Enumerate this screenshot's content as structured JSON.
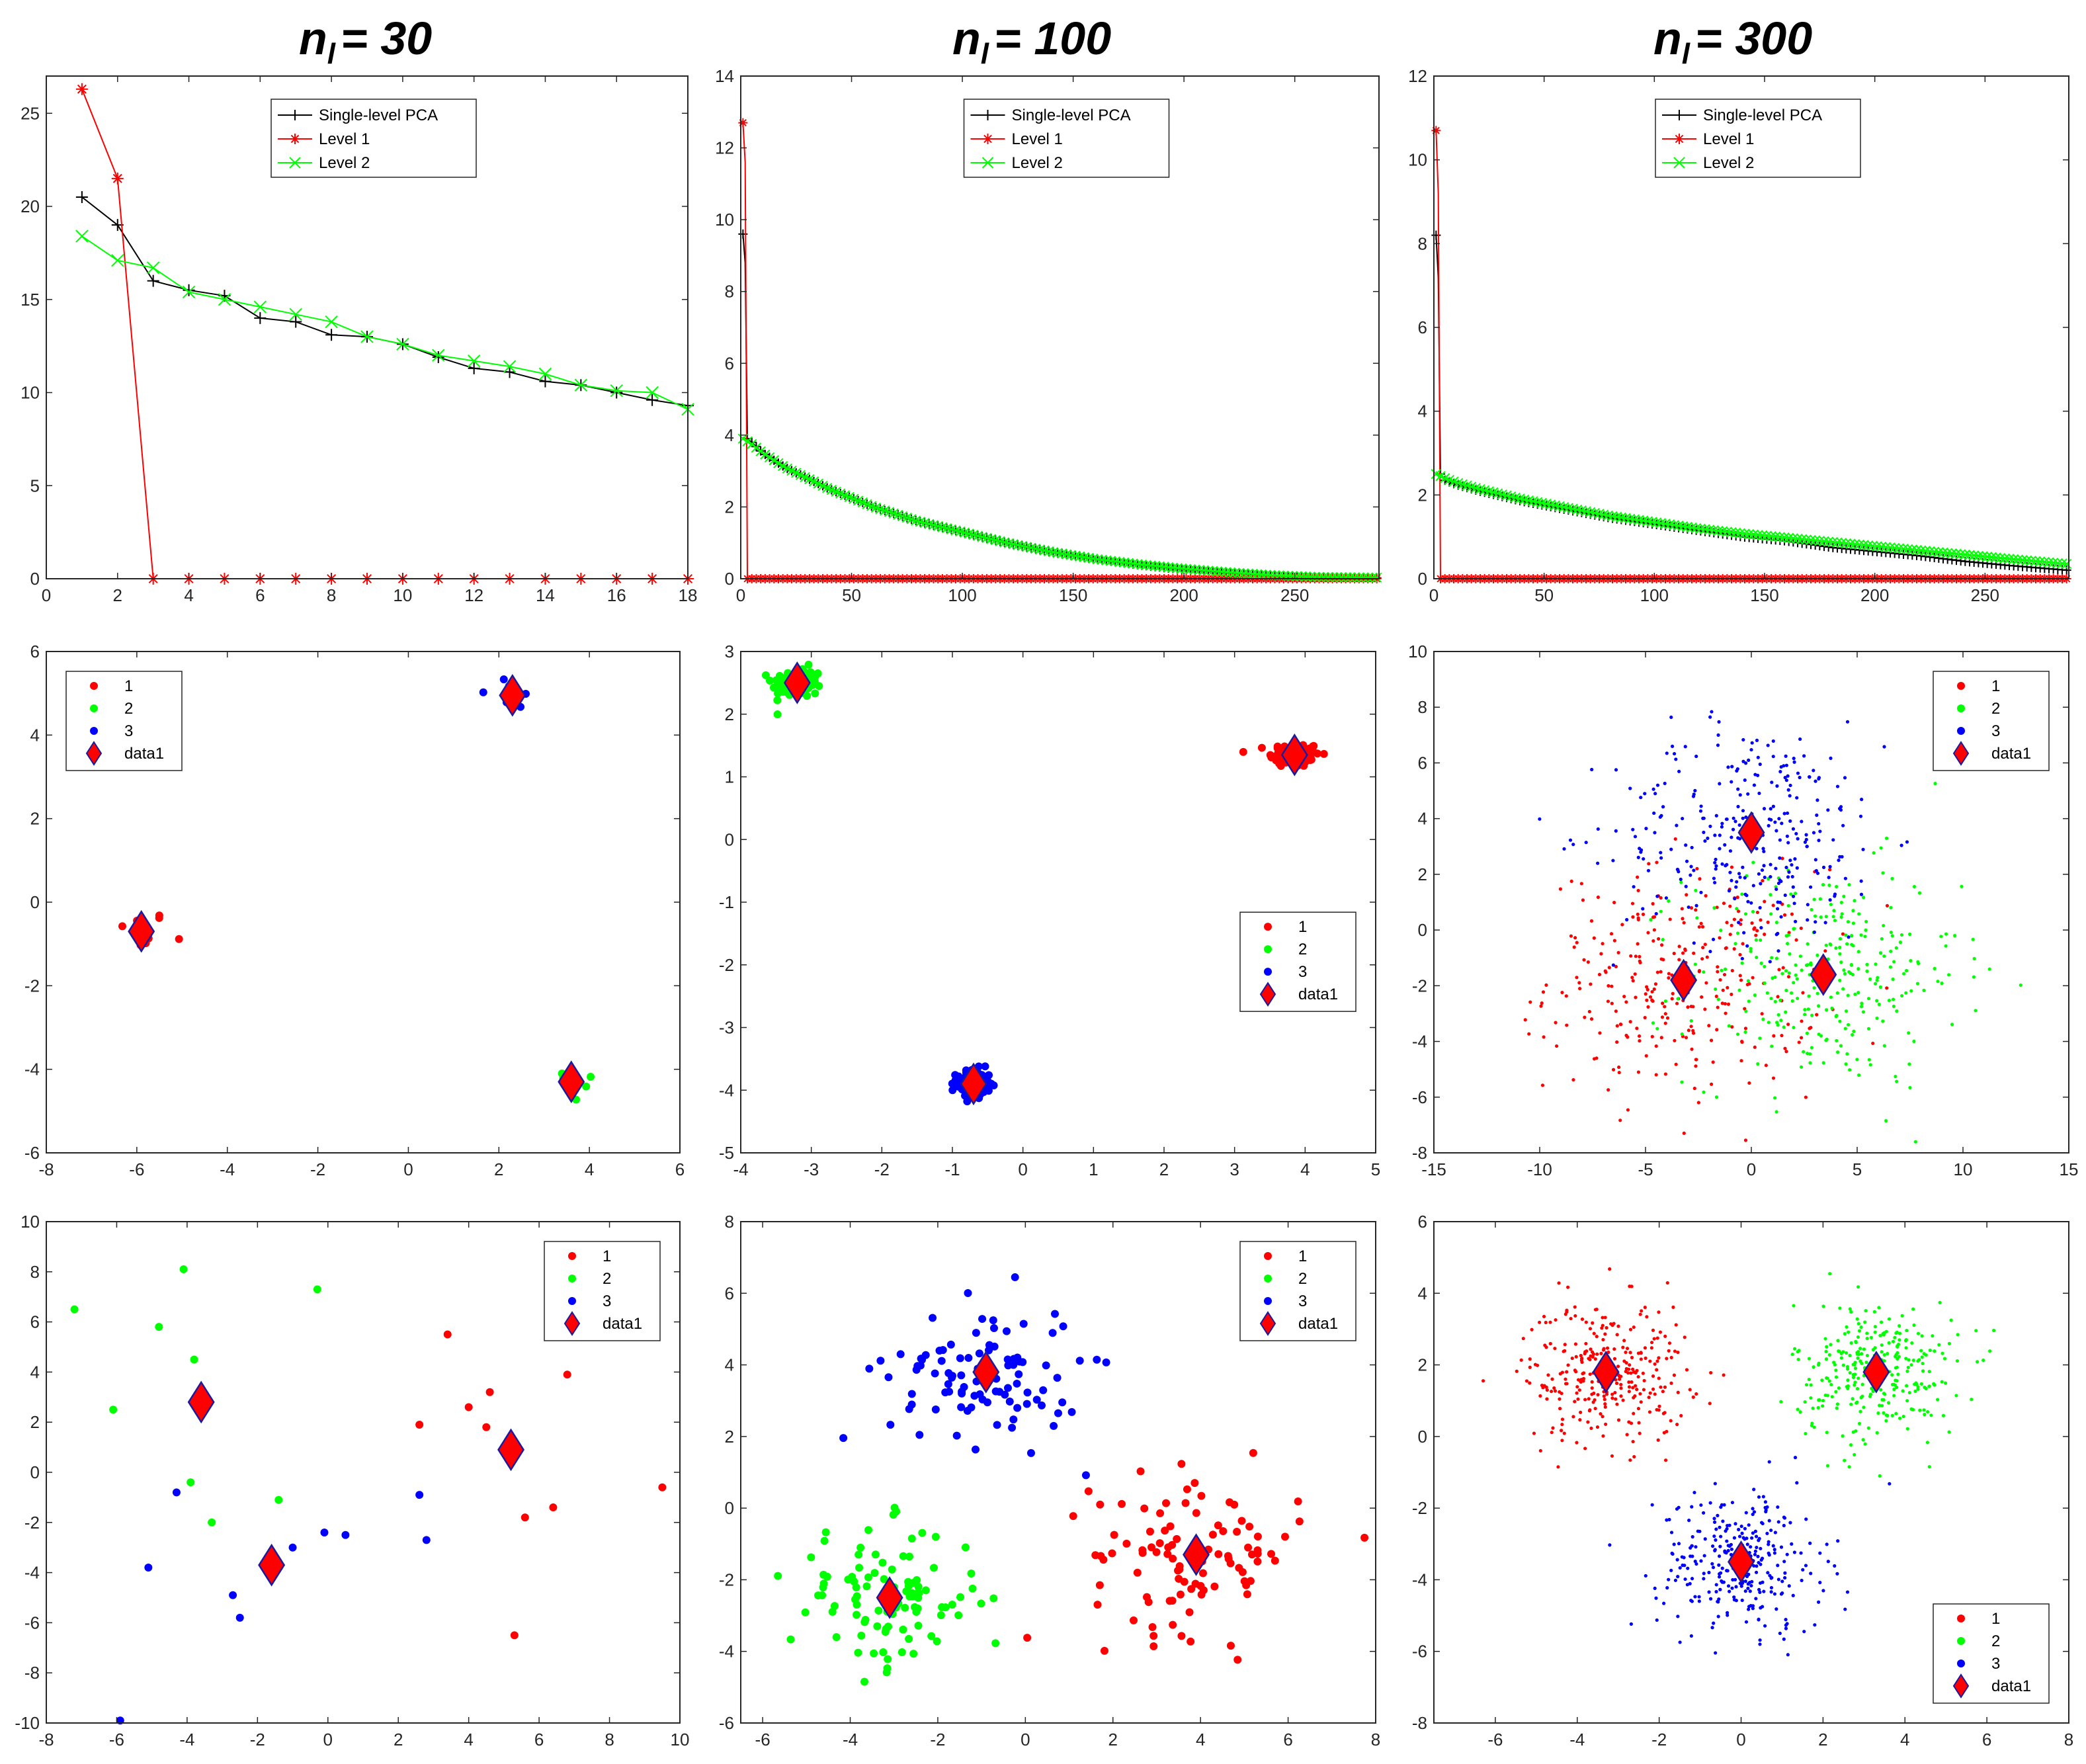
{
  "columns": [
    {
      "n": "n",
      "sub": "l",
      "eq": "= 30"
    },
    {
      "n": "n",
      "sub": "l",
      "eq": "= 100"
    },
    {
      "n": "n",
      "sub": "l",
      "eq": "= 300"
    }
  ],
  "colors": {
    "single": "#000000",
    "level1": "#ff0000",
    "level2": "#00ff00",
    "c1": "#ff0000",
    "c2": "#00ff00",
    "c3": "#0000ff",
    "axis": "#262626"
  },
  "chart_data": [
    {
      "id": "p11",
      "type": "line",
      "xlim": [
        0,
        18
      ],
      "ylim": [
        0,
        27
      ],
      "xticks": [
        0,
        2,
        4,
        6,
        8,
        10,
        12,
        14,
        16,
        18
      ],
      "yticks": [
        0,
        5,
        10,
        15,
        20,
        25
      ],
      "legend": {
        "position": "top-center",
        "entries": [
          "Single-level PCA",
          "Level 1",
          "Level 2"
        ]
      },
      "series": [
        {
          "name": "Single-level PCA",
          "marker": "+",
          "x": [
            1,
            2,
            3,
            4,
            5,
            6,
            7,
            8,
            9,
            10,
            11,
            12,
            13,
            14,
            15,
            16,
            17,
            18
          ],
          "y": [
            20.5,
            19,
            16,
            15.5,
            15.2,
            14,
            13.8,
            13.1,
            13,
            12.6,
            11.9,
            11.3,
            11.1,
            10.6,
            10.4,
            10,
            9.6,
            9.3
          ]
        },
        {
          "name": "Level 1",
          "marker": "*",
          "x": [
            1,
            2,
            3,
            4,
            5,
            6,
            7,
            8,
            9,
            10,
            11,
            12,
            13,
            14,
            15,
            16,
            17,
            18
          ],
          "y": [
            26.3,
            21.5,
            0,
            0,
            0,
            0,
            0,
            0,
            0,
            0,
            0,
            0,
            0,
            0,
            0,
            0,
            0,
            0
          ]
        },
        {
          "name": "Level 2",
          "marker": "x",
          "x": [
            1,
            2,
            3,
            4,
            5,
            6,
            7,
            8,
            9,
            10,
            11,
            12,
            13,
            14,
            15,
            16,
            17,
            18
          ],
          "y": [
            18.4,
            17.1,
            16.7,
            15.4,
            15,
            14.6,
            14.2,
            13.8,
            13,
            12.6,
            12,
            11.7,
            11.4,
            11,
            10.4,
            10.1,
            10,
            9.1
          ]
        }
      ]
    },
    {
      "id": "p12",
      "type": "line",
      "xlim": [
        0,
        288
      ],
      "ylim": [
        0,
        14
      ],
      "xticks": [
        0,
        50,
        100,
        150,
        200,
        250
      ],
      "yticks": [
        0,
        2,
        4,
        6,
        8,
        10,
        12,
        14
      ],
      "legend": {
        "position": "top-center",
        "entries": [
          "Single-level PCA",
          "Level 1",
          "Level 2"
        ]
      },
      "series": [
        {
          "name": "Single-level PCA",
          "marker": "+",
          "x": [
            1,
            2,
            3,
            5,
            10,
            20,
            40,
            60,
            80,
            100,
            120,
            140,
            160,
            180,
            200,
            220,
            240,
            260,
            288
          ],
          "y": [
            9.6,
            8.8,
            3.9,
            3.8,
            3.5,
            3.1,
            2.5,
            2.0,
            1.6,
            1.3,
            1.0,
            0.75,
            0.55,
            0.38,
            0.25,
            0.15,
            0.08,
            0.04,
            0.02
          ]
        },
        {
          "name": "Level 1",
          "marker": "*",
          "x": [
            1,
            2,
            3,
            288
          ],
          "y": [
            12.7,
            11.6,
            0,
            0
          ]
        },
        {
          "name": "Level 2",
          "marker": "x",
          "x": [
            1,
            5,
            10,
            20,
            40,
            60,
            80,
            100,
            120,
            140,
            160,
            180,
            200,
            220,
            240,
            260,
            288
          ],
          "y": [
            3.9,
            3.75,
            3.5,
            3.1,
            2.5,
            2.0,
            1.6,
            1.3,
            1.0,
            0.75,
            0.55,
            0.4,
            0.28,
            0.18,
            0.1,
            0.05,
            0.03
          ]
        }
      ]
    },
    {
      "id": "p13",
      "type": "line",
      "xlim": [
        0,
        288
      ],
      "ylim": [
        0,
        12
      ],
      "xticks": [
        0,
        50,
        100,
        150,
        200,
        250
      ],
      "yticks": [
        0,
        2,
        4,
        6,
        8,
        10,
        12
      ],
      "legend": {
        "position": "top-center",
        "entries": [
          "Single-level PCA",
          "Level 1",
          "Level 2"
        ]
      },
      "series": [
        {
          "name": "Single-level PCA",
          "marker": "+",
          "x": [
            1,
            2,
            3,
            5,
            10,
            20,
            40,
            60,
            80,
            100,
            120,
            140,
            160,
            180,
            200,
            220,
            240,
            260,
            288
          ],
          "y": [
            8.2,
            7.2,
            2.5,
            2.35,
            2.25,
            2.1,
            1.85,
            1.65,
            1.45,
            1.3,
            1.15,
            1.0,
            0.9,
            0.75,
            0.65,
            0.55,
            0.42,
            0.32,
            0.2
          ]
        },
        {
          "name": "Level 1",
          "marker": "*",
          "x": [
            1,
            2,
            3,
            288
          ],
          "y": [
            10.7,
            9.2,
            0,
            0
          ]
        },
        {
          "name": "Level 2",
          "marker": "x",
          "x": [
            1,
            5,
            10,
            20,
            40,
            60,
            80,
            100,
            120,
            140,
            160,
            180,
            200,
            220,
            240,
            260,
            288
          ],
          "y": [
            2.5,
            2.4,
            2.3,
            2.15,
            1.9,
            1.7,
            1.5,
            1.35,
            1.2,
            1.08,
            0.98,
            0.88,
            0.78,
            0.68,
            0.58,
            0.48,
            0.35
          ]
        }
      ]
    },
    {
      "id": "p21",
      "type": "scatter",
      "xlim": [
        -8,
        6
      ],
      "ylim": [
        -6,
        6
      ],
      "xticks": [
        -8,
        -6,
        -4,
        -2,
        0,
        2,
        4,
        6
      ],
      "yticks": [
        -6,
        -4,
        -2,
        0,
        2,
        4,
        6
      ],
      "legend": {
        "position": "top-left",
        "entries": [
          "1",
          "2",
          "3",
          "data1"
        ]
      },
      "clusters": [
        {
          "name": "1",
          "center": [
            -5.9,
            -0.7
          ],
          "spread": [
            0.3,
            0.25
          ],
          "count": 10
        },
        {
          "name": "2",
          "center": [
            3.6,
            -4.3
          ],
          "spread": [
            0.35,
            0.25
          ],
          "count": 10
        },
        {
          "name": "3",
          "center": [
            2.3,
            4.9
          ],
          "spread": [
            0.35,
            0.3
          ],
          "count": 10
        }
      ],
      "data1": [
        [
          -5.9,
          -0.7
        ],
        [
          3.6,
          -4.3
        ],
        [
          2.3,
          4.95
        ]
      ]
    },
    {
      "id": "p22",
      "type": "scatter",
      "xlim": [
        -4,
        5
      ],
      "ylim": [
        -5,
        3
      ],
      "xticks": [
        -4,
        -3,
        -2,
        -1,
        0,
        1,
        2,
        3,
        4,
        5
      ],
      "yticks": [
        -5,
        -4,
        -3,
        -2,
        -1,
        0,
        1,
        2,
        3
      ],
      "legend": {
        "position": "center-right",
        "entries": [
          "1",
          "2",
          "3",
          "data1"
        ]
      },
      "clusters": [
        {
          "name": "1",
          "center": [
            3.85,
            1.35
          ],
          "spread": [
            0.18,
            0.1
          ],
          "count": 100
        },
        {
          "name": "2",
          "center": [
            -3.2,
            2.5
          ],
          "spread": [
            0.18,
            0.12
          ],
          "count": 100
        },
        {
          "name": "3",
          "center": [
            -0.7,
            -3.9
          ],
          "spread": [
            0.12,
            0.12
          ],
          "count": 100
        }
      ],
      "data1": [
        [
          3.85,
          1.35
        ],
        [
          -3.2,
          2.5
        ],
        [
          -0.7,
          -3.9
        ]
      ]
    },
    {
      "id": "p23",
      "type": "scatter",
      "xlim": [
        -15,
        15
      ],
      "ylim": [
        -8,
        10
      ],
      "xticks": [
        -15,
        -10,
        -5,
        0,
        5,
        10,
        15
      ],
      "yticks": [
        -8,
        -6,
        -4,
        -2,
        0,
        2,
        4,
        6,
        8,
        10
      ],
      "legend": {
        "position": "top-right",
        "entries": [
          "1",
          "2",
          "3",
          "data1"
        ]
      },
      "clusters": [
        {
          "name": "1",
          "center": [
            -3.2,
            -1.8
          ],
          "spread": [
            3.2,
            2.0
          ],
          "count": 300
        },
        {
          "name": "2",
          "center": [
            3.4,
            -1.6
          ],
          "spread": [
            3.2,
            2.0
          ],
          "count": 300
        },
        {
          "name": "3",
          "center": [
            0,
            3.5
          ],
          "spread": [
            3.2,
            2.0
          ],
          "count": 300
        }
      ],
      "data1": [
        [
          -3.2,
          -1.8
        ],
        [
          3.4,
          -1.6
        ],
        [
          0,
          3.5
        ]
      ]
    },
    {
      "id": "p31",
      "type": "scatter",
      "xlim": [
        -8,
        10
      ],
      "ylim": [
        -10,
        10
      ],
      "xticks": [
        -8,
        -6,
        -4,
        -2,
        0,
        2,
        4,
        6,
        8,
        10
      ],
      "yticks": [
        -10,
        -8,
        -6,
        -4,
        -2,
        0,
        2,
        4,
        6,
        8,
        10
      ],
      "legend": {
        "position": "top-right",
        "entries": [
          "1",
          "2",
          "3",
          "data1"
        ]
      },
      "points": {
        "1": [
          [
            3.4,
            5.5
          ],
          [
            2.6,
            1.9
          ],
          [
            4,
            2.6
          ],
          [
            4.6,
            3.2
          ],
          [
            4.5,
            1.8
          ],
          [
            6.8,
            3.9
          ],
          [
            5.6,
            -1.8
          ],
          [
            6.4,
            -1.4
          ],
          [
            5.3,
            -6.5
          ],
          [
            9.5,
            -0.6
          ]
        ],
        "2": [
          [
            -7.2,
            6.5
          ],
          [
            -6.1,
            2.5
          ],
          [
            -4.8,
            5.8
          ],
          [
            -4.1,
            8.1
          ],
          [
            -3.8,
            4.5
          ],
          [
            -3.9,
            -0.4
          ],
          [
            -3.3,
            -2
          ],
          [
            -1.4,
            -1.1
          ],
          [
            -0.3,
            7.3
          ]
        ],
        "3": [
          [
            -5.9,
            -9.9
          ],
          [
            -5.1,
            -3.8
          ],
          [
            -4.3,
            -0.8
          ],
          [
            -2.7,
            -4.9
          ],
          [
            -2.5,
            -5.8
          ],
          [
            -1,
            -3
          ],
          [
            -0.1,
            -2.4
          ],
          [
            0.5,
            -2.5
          ],
          [
            2.6,
            -0.9
          ],
          [
            2.8,
            -2.7
          ]
        ]
      },
      "data1": [
        [
          -3.6,
          2.8
        ],
        [
          -1.6,
          -3.7
        ],
        [
          5.2,
          0.9
        ]
      ]
    },
    {
      "id": "p32",
      "type": "scatter",
      "xlim": [
        -6.5,
        8
      ],
      "ylim": [
        -6,
        8
      ],
      "xticks": [
        -6,
        -4,
        -2,
        0,
        2,
        4,
        6,
        8
      ],
      "yticks": [
        -6,
        -4,
        -2,
        0,
        2,
        4,
        6,
        8
      ],
      "legend": {
        "position": "top-right",
        "entries": [
          "1",
          "2",
          "3",
          "data1"
        ]
      },
      "clusters": [
        {
          "name": "1",
          "center": [
            3.9,
            -1.3
          ],
          "spread": [
            1.2,
            1.1
          ],
          "count": 100
        },
        {
          "name": "2",
          "center": [
            -3.2,
            -2.5
          ],
          "spread": [
            1.1,
            1.0
          ],
          "count": 100
        },
        {
          "name": "3",
          "center": [
            -0.9,
            3.8
          ],
          "spread": [
            1.1,
            1.0
          ],
          "count": 100
        }
      ],
      "data1": [
        [
          3.9,
          -1.3
        ],
        [
          -3.1,
          -2.5
        ],
        [
          -0.9,
          3.8
        ]
      ]
    },
    {
      "id": "p33",
      "type": "scatter",
      "xlim": [
        -7.5,
        8
      ],
      "ylim": [
        -8,
        6
      ],
      "xticks": [
        -6,
        -4,
        -2,
        0,
        2,
        4,
        6,
        8
      ],
      "yticks": [
        -8,
        -6,
        -4,
        -2,
        0,
        2,
        4,
        6
      ],
      "legend": {
        "position": "bottom-right",
        "entries": [
          "1",
          "2",
          "3",
          "data1"
        ]
      },
      "clusters": [
        {
          "name": "1",
          "center": [
            -3.3,
            1.8
          ],
          "spread": [
            1.0,
            1.0
          ],
          "count": 300
        },
        {
          "name": "2",
          "center": [
            3.3,
            1.8
          ],
          "spread": [
            1.0,
            1.0
          ],
          "count": 300
        },
        {
          "name": "3",
          "center": [
            0,
            -3.5
          ],
          "spread": [
            1.0,
            1.0
          ],
          "count": 300
        }
      ],
      "data1": [
        [
          -3.3,
          1.8
        ],
        [
          3.3,
          1.8
        ],
        [
          0,
          -3.5
        ]
      ]
    }
  ]
}
